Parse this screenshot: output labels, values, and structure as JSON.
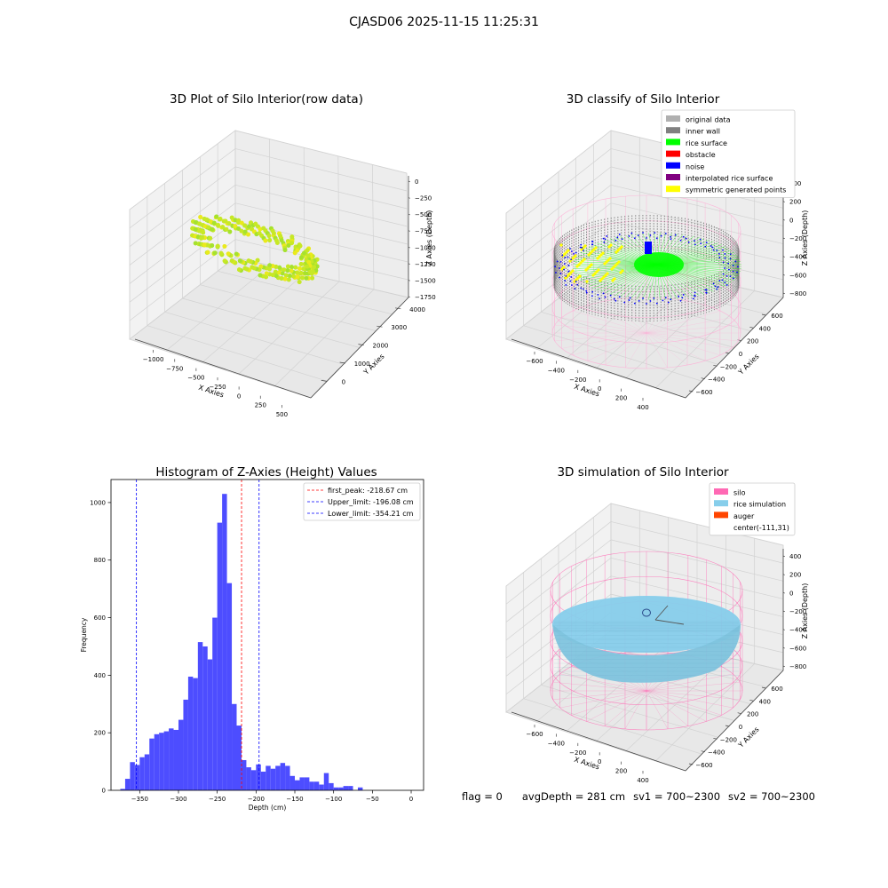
{
  "figure": {
    "suptitle": "CJASD06 2025-11-15 11:25:31"
  },
  "colors": {
    "hist_bar": "#4d4dff",
    "peak_line": "#ff0000",
    "limit_line": "#0000ff",
    "pane": "#f2f2f2",
    "silo": "#ff69b4",
    "rice_sim": "#87ceeb",
    "rice_surface": "#00ff00",
    "noise": "#0000ff"
  },
  "chart_data": [
    {
      "type": "scatter",
      "title": "3D Plot of Silo Interior(row data)",
      "xlabel": "X Axies",
      "ylabel": "Y Axies",
      "zlabel": "Z Axies (Depth)",
      "x_ticks": [
        "−1000",
        "−750",
        "−500",
        "−250",
        "0",
        "250",
        "500"
      ],
      "y_ticks": [
        "0",
        "1000",
        "2000",
        "3000",
        "4000"
      ],
      "z_ticks": [
        "0",
        "−250",
        "−500",
        "−750",
        "−1000",
        "−1250",
        "−1500",
        "−1750"
      ]
    },
    {
      "type": "scatter",
      "title": "3D classify of Silo Interior",
      "xlabel": "X Axies",
      "ylabel": "Y Axies",
      "zlabel": "Z Axies (Depth)",
      "x_ticks": [
        "−600",
        "−400",
        "−200",
        "0",
        "200",
        "400"
      ],
      "y_ticks": [
        "−600",
        "−400",
        "−200",
        "0",
        "200",
        "400",
        "600"
      ],
      "z_ticks": [
        "400",
        "200",
        "0",
        "−200",
        "−400",
        "−600",
        "−800"
      ],
      "legend": [
        {
          "label": "original data",
          "color": "#b0b0b0"
        },
        {
          "label": "inner wall",
          "color": "#808080"
        },
        {
          "label": "rice surface",
          "color": "#00ff00"
        },
        {
          "label": "obstacle",
          "color": "#ff0000"
        },
        {
          "label": "noise",
          "color": "#0000ff"
        },
        {
          "label": "interpolated rice surface",
          "color": "#800080"
        },
        {
          "label": "symmetric generated points",
          "color": "#ffff00"
        }
      ],
      "legend_position": "top-right"
    },
    {
      "type": "bar",
      "title": "Histogram of Z-Axies (Height) Values",
      "xlabel": "Depth (cm)",
      "ylabel": "Frequency",
      "xlim": [
        -387,
        16
      ],
      "ylim": [
        0,
        1080
      ],
      "x_ticks": [
        -350,
        -300,
        -250,
        -200,
        -150,
        -100,
        -50,
        0
      ],
      "y_ticks": [
        0,
        200,
        400,
        600,
        800,
        1000
      ],
      "bin_start": -375,
      "bin_width": 6.25,
      "values": [
        5,
        40,
        98,
        88,
        115,
        125,
        180,
        195,
        200,
        205,
        215,
        210,
        245,
        315,
        395,
        390,
        515,
        500,
        455,
        600,
        930,
        1030,
        720,
        300,
        225,
        105,
        80,
        70,
        90,
        65,
        85,
        75,
        85,
        95,
        85,
        50,
        35,
        45,
        45,
        30,
        30,
        20,
        60,
        25,
        10,
        10,
        15,
        15,
        0,
        10
      ],
      "lines": [
        {
          "label": "first_peak: -218.67 cm",
          "x": -218.67,
          "color": "#ff0000"
        },
        {
          "label": "Upper_limit: -196.08 cm",
          "x": -196.08,
          "color": "#0000ff"
        },
        {
          "label": "Lower_limit: -354.21 cm",
          "x": -354.21,
          "color": "#0000ff"
        }
      ],
      "legend_position": "top-right"
    },
    {
      "type": "scatter",
      "title": "3D simulation of Silo Interior",
      "xlabel": "X Axies",
      "ylabel": "Y Axies",
      "zlabel": "Z Axies (Depth)",
      "x_ticks": [
        "−600",
        "−400",
        "−200",
        "0",
        "200",
        "400"
      ],
      "y_ticks": [
        "−600",
        "−400",
        "−200",
        "0",
        "200",
        "400",
        "600"
      ],
      "z_ticks": [
        "400",
        "200",
        "0",
        "−200",
        "−400",
        "−600",
        "−800"
      ],
      "legend": [
        {
          "label": "silo",
          "color": "#ff69b4"
        },
        {
          "label": "rice simulation",
          "color": "#87ceeb"
        },
        {
          "label": "auger",
          "color": "#ff4500"
        },
        {
          "label": "center(-111,31)",
          "color": ""
        }
      ],
      "legend_position": "top-right"
    }
  ],
  "footer": {
    "flag": "flag = 0",
    "avg_depth": "avgDepth = 281 cm",
    "sv1": "sv1 = 700~2300",
    "sv2": "sv2 = 700~2300"
  }
}
